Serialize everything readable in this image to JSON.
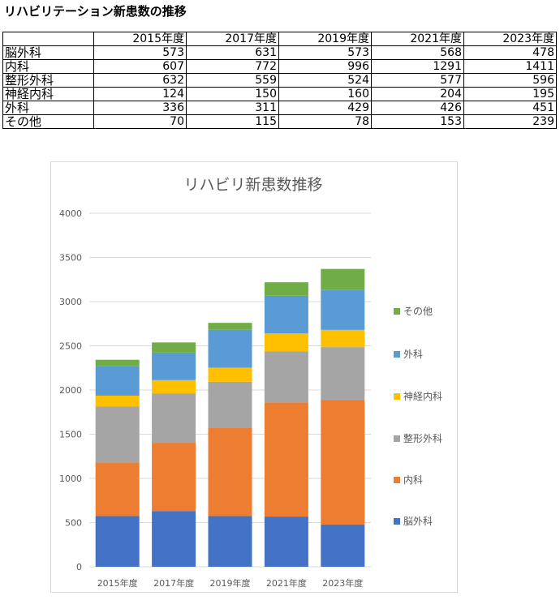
{
  "title": "リハビリテーション新患数の推移",
  "table": {
    "columns": [
      "",
      "2015年度",
      "2017年度",
      "2019年度",
      "2021年度",
      "2023年度"
    ],
    "rows": [
      {
        "label": "脳外科",
        "values": [
          "573",
          "631",
          "573",
          "568",
          "478"
        ]
      },
      {
        "label": "内科",
        "values": [
          "607",
          "772",
          "996",
          "1291",
          "1411"
        ]
      },
      {
        "label": "整形外科",
        "values": [
          "632",
          "559",
          "524",
          "577",
          "596"
        ]
      },
      {
        "label": "神経内科",
        "values": [
          "124",
          "150",
          "160",
          "204",
          "195"
        ]
      },
      {
        "label": "外科",
        "values": [
          "336",
          "311",
          "429",
          "426",
          "451"
        ]
      },
      {
        "label": "その他",
        "values": [
          "70",
          "115",
          "78",
          "153",
          "239"
        ]
      }
    ]
  },
  "chart_data": {
    "type": "bar",
    "stacked": true,
    "title": "リハビリ新患数推移",
    "categories": [
      "2015年度",
      "2017年度",
      "2019年度",
      "2021年度",
      "2023年度"
    ],
    "series": [
      {
        "name": "脳外科",
        "values": [
          573,
          631,
          573,
          568,
          478
        ],
        "color": "#4472c4"
      },
      {
        "name": "内科",
        "values": [
          607,
          772,
          996,
          1291,
          1411
        ],
        "color": "#ed7d31"
      },
      {
        "name": "整形外科",
        "values": [
          632,
          559,
          524,
          577,
          596
        ],
        "color": "#a5a5a5"
      },
      {
        "name": "神経内科",
        "values": [
          124,
          150,
          160,
          204,
          195
        ],
        "color": "#ffc000"
      },
      {
        "name": "外科",
        "values": [
          336,
          311,
          429,
          426,
          451
        ],
        "color": "#5b9bd5"
      },
      {
        "name": "その他",
        "values": [
          70,
          115,
          78,
          153,
          239
        ],
        "color": "#70ad47"
      }
    ],
    "xlabel": "",
    "ylabel": "",
    "ylim": [
      0,
      4000
    ],
    "yticks": [
      0,
      500,
      1000,
      1500,
      2000,
      2500,
      3000,
      3500,
      4000
    ],
    "grid": true,
    "legend": "right"
  }
}
